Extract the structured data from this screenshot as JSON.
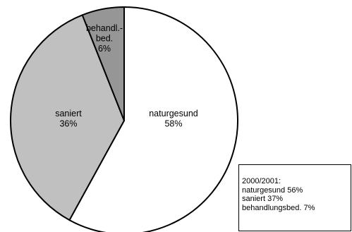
{
  "chart_data": {
    "type": "pie",
    "slices": [
      {
        "label_lines": [
          "naturgesund",
          "58%"
        ],
        "value": 58,
        "color": "#ffffff"
      },
      {
        "label_lines": [
          "saniert",
          "36%"
        ],
        "value": 36,
        "color": "#c0c0c0"
      },
      {
        "label_lines": [
          "behandl.-",
          "bed.",
          "6%"
        ],
        "value": 6,
        "color": "#969696"
      }
    ],
    "start": "12 o'clock",
    "direction": "clockwise"
  },
  "info_box": {
    "lines": [
      "2000/2001:",
      "naturgesund 56%",
      "saniert 37%",
      "behandlungsbed. 7%"
    ]
  }
}
